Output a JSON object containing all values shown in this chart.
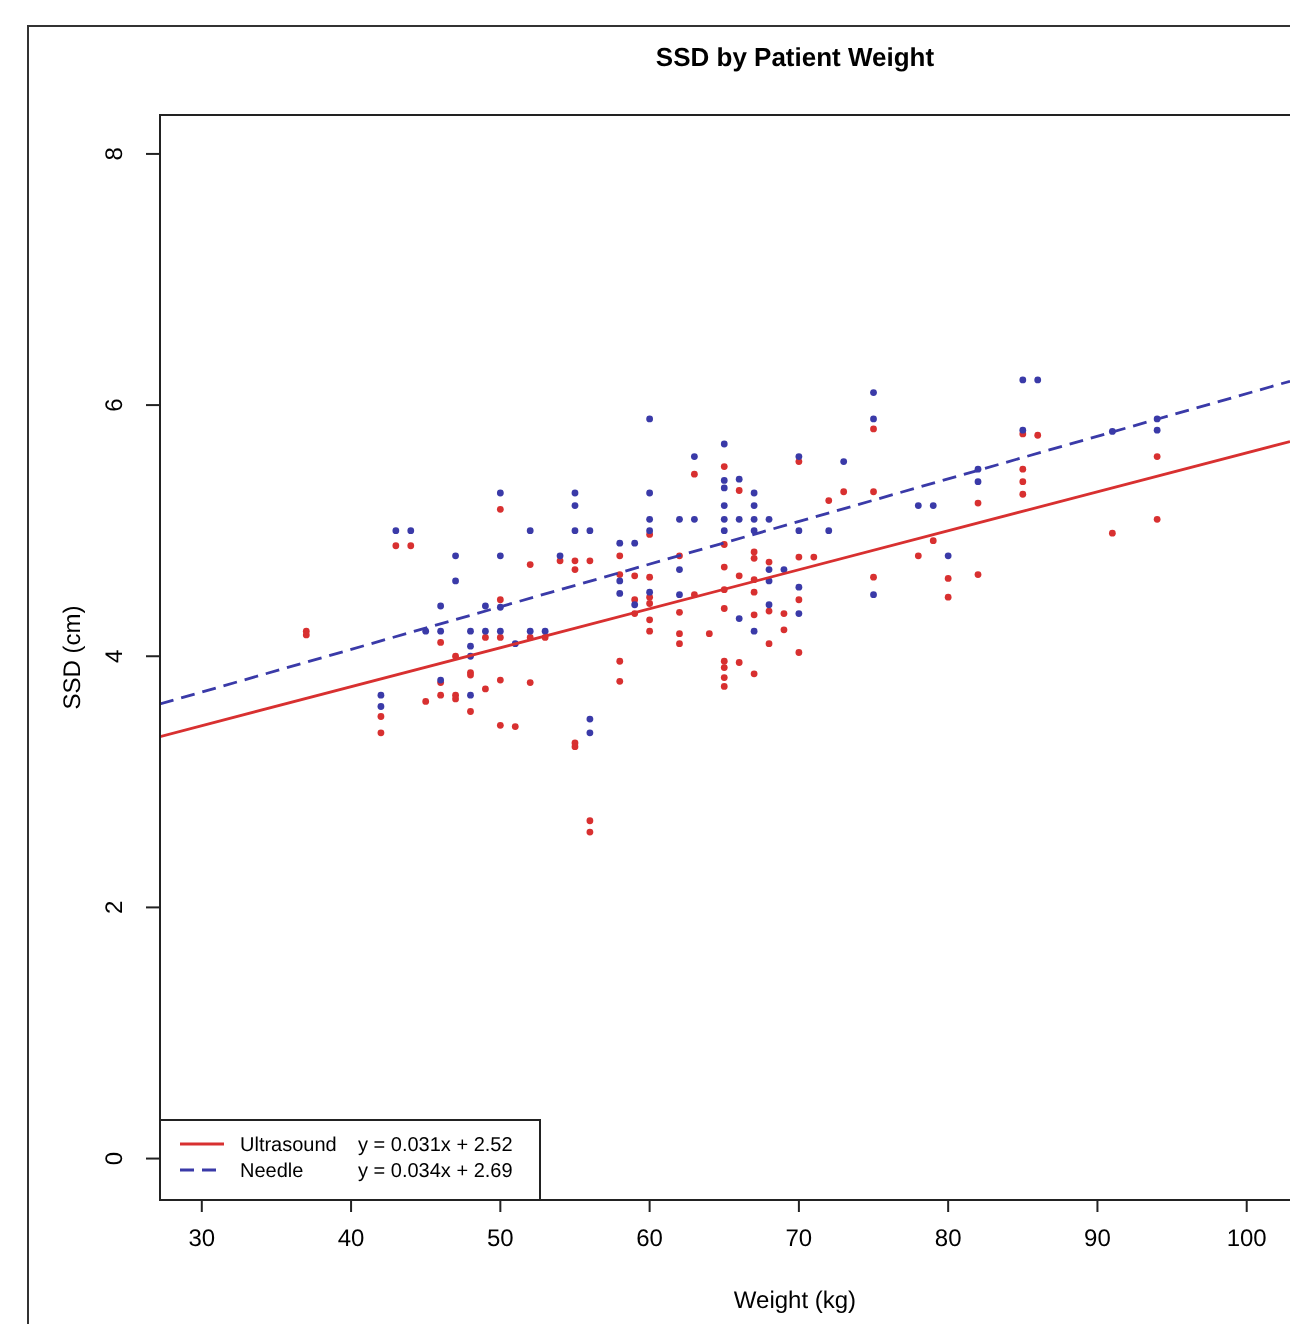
{
  "chart_data": {
    "type": "scatter",
    "title": "SSD by Patient Weight",
    "xlabel": "Weight (kg)",
    "ylabel": "SSD (cm)",
    "xlim": [
      27.2,
      102.9
    ],
    "ylim": [
      -0.33,
      8.31
    ],
    "xticks": [
      30,
      40,
      50,
      60,
      70,
      80,
      90,
      100
    ],
    "yticks": [
      0,
      2,
      4,
      6,
      8
    ],
    "grid": false,
    "legend": "bottom left",
    "marker": "circle",
    "annotations": [
      "y = 0.031x + 2.52",
      "y = 0.034x + 2.69"
    ],
    "series": [
      {
        "color": "#d83030",
        "x": [
          37,
          37,
          42,
          42,
          43,
          44,
          45,
          46,
          46,
          46,
          47,
          47,
          47,
          48,
          48,
          48,
          49,
          49,
          50,
          50,
          50,
          50,
          50,
          51,
          52,
          52,
          52,
          53,
          54,
          55,
          55,
          55,
          55,
          56,
          56,
          56,
          58,
          58,
          58,
          58,
          59,
          59,
          59,
          60,
          60,
          60,
          60,
          60,
          60,
          62,
          62,
          62,
          62,
          63,
          63,
          64,
          65,
          65,
          65,
          65,
          65,
          65,
          65,
          65,
          65,
          66,
          66,
          66,
          67,
          67,
          67,
          67,
          67,
          67,
          68,
          68,
          68,
          69,
          69,
          70,
          70,
          70,
          70,
          71,
          72,
          73,
          75,
          75,
          75,
          78,
          79,
          80,
          80,
          82,
          82,
          85,
          85,
          85,
          85,
          86,
          91,
          94,
          94
        ],
        "values": [
          4.2,
          4.17,
          3.52,
          3.39,
          4.88,
          4.88,
          3.64,
          4.11,
          3.79,
          3.69,
          4.0,
          3.69,
          3.66,
          3.87,
          3.85,
          3.56,
          3.74,
          4.15,
          5.17,
          4.45,
          3.81,
          3.45,
          4.15,
          3.44,
          4.73,
          4.15,
          3.79,
          4.15,
          4.76,
          4.76,
          4.69,
          3.31,
          3.28,
          4.76,
          2.69,
          2.6,
          4.8,
          4.65,
          3.96,
          3.8,
          4.64,
          4.45,
          4.34,
          4.97,
          4.63,
          4.47,
          4.42,
          4.29,
          4.2,
          4.8,
          4.35,
          4.18,
          4.1,
          5.45,
          4.49,
          4.18,
          5.51,
          4.89,
          4.71,
          4.53,
          4.38,
          3.96,
          3.91,
          3.83,
          3.76,
          5.32,
          4.64,
          3.95,
          4.83,
          4.78,
          4.61,
          4.51,
          4.33,
          3.86,
          4.75,
          4.36,
          4.1,
          4.34,
          4.21,
          5.55,
          4.79,
          4.45,
          4.03,
          4.79,
          5.24,
          5.31,
          5.81,
          5.31,
          4.63,
          4.8,
          4.92,
          4.62,
          4.47,
          5.22,
          4.65,
          5.77,
          5.49,
          5.39,
          5.29,
          5.76,
          4.98,
          5.59,
          5.09
        ]
      },
      {
        "color": "#3a3aa8",
        "x": [
          42,
          42,
          43,
          44,
          45,
          46,
          46,
          46,
          47,
          47,
          48,
          48,
          48,
          48,
          49,
          49,
          50,
          50,
          50,
          50,
          51,
          52,
          52,
          53,
          54,
          55,
          55,
          55,
          56,
          56,
          56,
          58,
          58,
          58,
          59,
          59,
          60,
          60,
          60,
          60,
          60,
          62,
          62,
          62,
          63,
          63,
          65,
          65,
          65,
          65,
          65,
          65,
          66,
          66,
          66,
          67,
          67,
          67,
          67,
          67,
          68,
          68,
          68,
          68,
          69,
          70,
          70,
          70,
          70,
          72,
          73,
          75,
          75,
          75,
          78,
          79,
          80,
          82,
          82,
          85,
          85,
          86,
          91,
          94,
          94
        ],
        "values": [
          3.69,
          3.6,
          5.0,
          5.0,
          4.2,
          4.4,
          4.2,
          3.81,
          4.8,
          4.6,
          4.2,
          4.08,
          4.0,
          3.69,
          4.4,
          4.2,
          5.3,
          4.8,
          4.39,
          4.2,
          4.1,
          5.0,
          4.2,
          4.2,
          4.8,
          5.3,
          5.2,
          5.0,
          5.0,
          3.5,
          3.39,
          4.9,
          4.6,
          4.5,
          4.9,
          4.41,
          5.89,
          5.3,
          5.09,
          5.0,
          4.51,
          5.09,
          4.69,
          4.49,
          5.59,
          5.09,
          5.69,
          5.4,
          5.34,
          5.2,
          5.09,
          5.0,
          5.41,
          5.09,
          4.3,
          5.3,
          5.2,
          5.09,
          5.0,
          4.2,
          5.09,
          4.69,
          4.6,
          4.41,
          4.69,
          5.59,
          5.0,
          4.55,
          4.34,
          5.0,
          5.55,
          6.1,
          5.89,
          4.49,
          5.2,
          5.2,
          4.8,
          5.49,
          5.39,
          6.2,
          5.8,
          6.2,
          5.79,
          5.89,
          5.8
        ]
      },
      {
        "type": "line",
        "name": "Ultrasound",
        "color": "#d83030",
        "line_style": "solid",
        "marker": "none",
        "x": [
          27.2,
          102.9
        ],
        "values": [
          3.36,
          5.71
        ]
      },
      {
        "type": "line",
        "name": "Needle",
        "color": "#3a3aa8",
        "line_style": "dashed",
        "marker": "none",
        "x": [
          27.2,
          102.9
        ],
        "values": [
          3.62,
          6.19
        ]
      }
    ]
  }
}
